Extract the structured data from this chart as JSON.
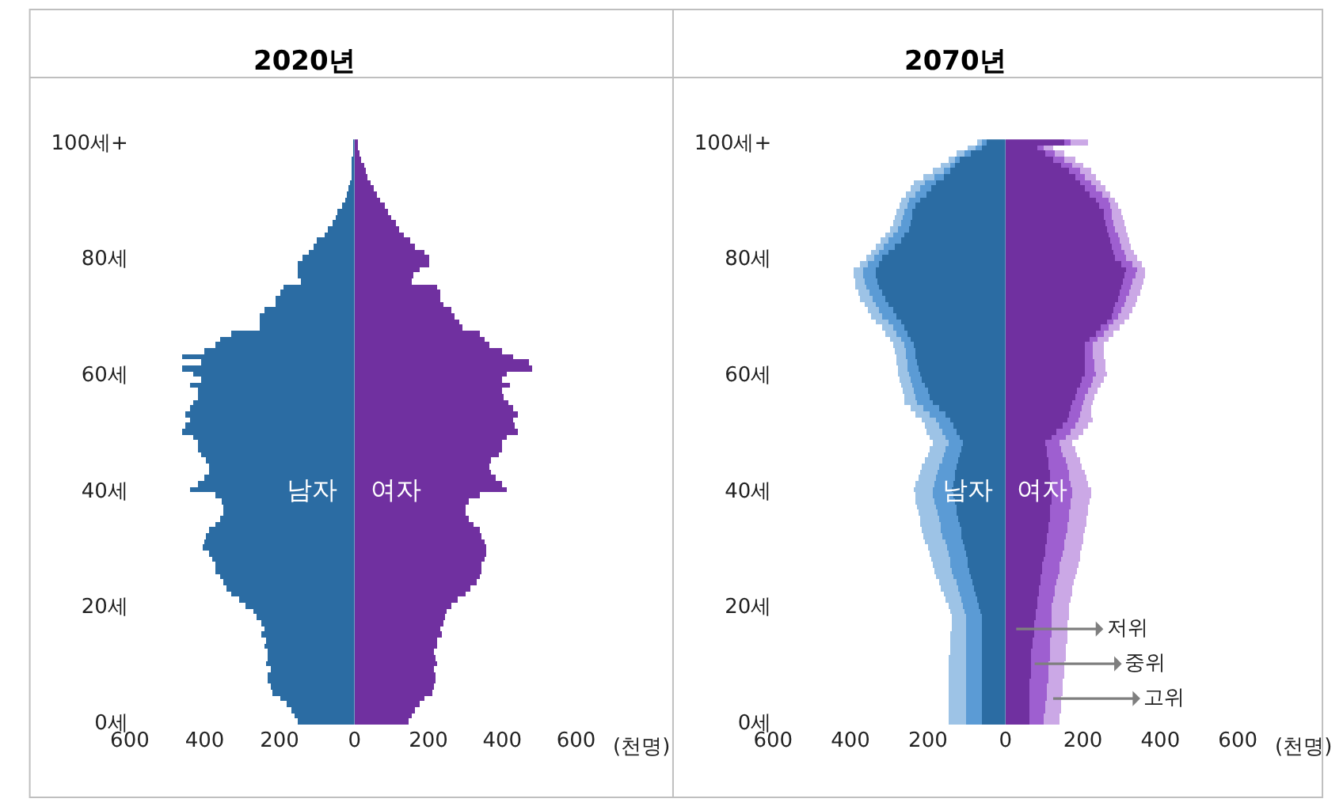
{
  "chart_data": [
    {
      "type": "bar",
      "orientation": "horizontal",
      "title": "2020년",
      "categories": [
        "100세+",
        null,
        null,
        null,
        null,
        null,
        null,
        null,
        null,
        null,
        null,
        null,
        null,
        null,
        null,
        null,
        null,
        null,
        null,
        null,
        "80세",
        null,
        null,
        null,
        null,
        null,
        null,
        null,
        null,
        null,
        null,
        null,
        null,
        null,
        null,
        null,
        null,
        null,
        null,
        null,
        "60세",
        null,
        null,
        null,
        null,
        null,
        null,
        null,
        null,
        null,
        null,
        null,
        null,
        null,
        null,
        null,
        null,
        null,
        null,
        null,
        "40세",
        null,
        null,
        null,
        null,
        null,
        null,
        null,
        null,
        null,
        null,
        null,
        null,
        null,
        null,
        null,
        null,
        null,
        null,
        null,
        "20세",
        null,
        null,
        null,
        null,
        null,
        null,
        null,
        null,
        null,
        null,
        null,
        null,
        null,
        null,
        null,
        null,
        null,
        null,
        null,
        "0세"
      ],
      "xlim": [
        600,
        0
      ],
      "xticks": [
        600,
        400,
        200,
        0
      ],
      "annotations": [
        "남자"
      ],
      "series": [
        {
          "color": "#2b6ca3",
          "values": [
            2,
            2,
            3,
            4,
            6,
            8,
            10,
            12,
            15,
            20,
            25,
            35,
            45,
            50,
            60,
            70,
            80,
            100,
            110,
            120,
            140,
            150,
            150,
            150,
            145,
            190,
            200,
            210,
            210,
            240,
            255,
            255,
            255,
            330,
            360,
            370,
            400,
            460,
            410,
            460,
            430,
            410,
            440,
            420,
            420,
            430,
            440,
            450,
            440,
            450,
            460,
            430,
            420,
            420,
            410,
            395,
            390,
            390,
            400,
            420,
            440,
            370,
            355,
            350,
            350,
            360,
            370,
            390,
            395,
            400,
            405,
            390,
            380,
            370,
            370,
            360,
            350,
            340,
            330,
            310,
            290,
            270,
            260,
            250,
            240,
            250,
            235,
            240,
            230,
            230,
            235,
            225,
            230,
            230,
            225,
            220,
            200,
            180,
            170,
            160,
            150
          ]
        }
      ]
    },
    {
      "type": "bar",
      "orientation": "horizontal",
      "xlabel": "(천명)",
      "categories": [
        null,
        null,
        null,
        null,
        null,
        null,
        null,
        null,
        null,
        null,
        null,
        null,
        null,
        null,
        null,
        null,
        null,
        null,
        null,
        null,
        null,
        null,
        null,
        null,
        null,
        null,
        null,
        null,
        null,
        null,
        null,
        null,
        null,
        null,
        null,
        null,
        null,
        null,
        null,
        null,
        null,
        null,
        null,
        null,
        null,
        null,
        null,
        null,
        null,
        null,
        null,
        null,
        null,
        null,
        null,
        null,
        null,
        null,
        null,
        null,
        null,
        null,
        null,
        null,
        null,
        null,
        null,
        null,
        null,
        null,
        null,
        null,
        null,
        null,
        null,
        null,
        null,
        null,
        null,
        null,
        null,
        null,
        null,
        null,
        null,
        null,
        null,
        null,
        null,
        null,
        null,
        null,
        null,
        null,
        null,
        null,
        null,
        null,
        null,
        null,
        null
      ],
      "xlim": [
        0,
        600
      ],
      "xticks": [
        200,
        400,
        600
      ],
      "annotations": [
        "여자"
      ],
      "series": [
        {
          "color": "#7030a0",
          "values": [
            8,
            10,
            14,
            18,
            24,
            29,
            35,
            42,
            50,
            60,
            70,
            80,
            90,
            100,
            110,
            120,
            135,
            150,
            165,
            190,
            200,
            200,
            175,
            160,
            155,
            225,
            230,
            230,
            240,
            260,
            270,
            285,
            290,
            340,
            350,
            365,
            400,
            430,
            470,
            480,
            410,
            400,
            420,
            400,
            405,
            415,
            430,
            440,
            430,
            435,
            440,
            410,
            400,
            400,
            390,
            370,
            365,
            370,
            380,
            400,
            410,
            340,
            310,
            300,
            300,
            310,
            320,
            340,
            345,
            350,
            355,
            355,
            350,
            345,
            345,
            340,
            330,
            315,
            300,
            280,
            260,
            250,
            245,
            240,
            230,
            235,
            225,
            225,
            215,
            220,
            225,
            215,
            220,
            220,
            215,
            210,
            190,
            175,
            165,
            155,
            145
          ]
        }
      ]
    },
    {
      "type": "bar",
      "orientation": "horizontal",
      "stacked": true,
      "title": "2070년",
      "categories": [
        "100세+",
        null,
        null,
        null,
        null,
        null,
        null,
        null,
        null,
        null,
        null,
        null,
        null,
        null,
        null,
        null,
        null,
        null,
        null,
        null,
        "80세",
        null,
        null,
        null,
        null,
        null,
        null,
        null,
        null,
        null,
        null,
        null,
        null,
        null,
        null,
        null,
        null,
        null,
        null,
        null,
        "60세",
        null,
        null,
        null,
        null,
        null,
        null,
        null,
        null,
        null,
        null,
        null,
        null,
        null,
        null,
        null,
        null,
        null,
        null,
        null,
        "40세",
        null,
        null,
        null,
        null,
        null,
        null,
        null,
        null,
        null,
        null,
        null,
        null,
        null,
        null,
        null,
        null,
        null,
        null,
        null,
        "20세",
        null,
        null,
        null,
        null,
        null,
        null,
        null,
        null,
        null,
        null,
        null,
        null,
        null,
        null,
        null,
        null,
        null,
        null,
        null,
        "0세"
      ],
      "xlim": [
        600,
        0
      ],
      "xticks": [
        600,
        400,
        200,
        0
      ],
      "annotations": [
        "남자"
      ],
      "series": [
        {
          "color": "#2b6ca3",
          "values": [
            48,
            60,
            90,
            116,
            128,
            140,
            160,
            180,
            192,
            205,
            220,
            230,
            240,
            242,
            245,
            248,
            260,
            270,
            285,
            300,
            316,
            326,
            336,
            334,
            330,
            328,
            318,
            310,
            300,
            290,
            280,
            270,
            260,
            252,
            244,
            236,
            232,
            230,
            226,
            224,
            220,
            214,
            208,
            200,
            194,
            188,
            172,
            156,
            140,
            132,
            124,
            116,
            108,
            112,
            116,
            120,
            125,
            128,
            130,
            133,
            136,
            133,
            130,
            127,
            124,
            121,
            118,
            115,
            112,
            108,
            105,
            102,
            99,
            96,
            92,
            88,
            84,
            80,
            76,
            72,
            68,
            64,
            60,
            60,
            60,
            60,
            60,
            60,
            60,
            60,
            60,
            60,
            60,
            60,
            60,
            60,
            60,
            60,
            60,
            60,
            60
          ]
        },
        {
          "color": "#5b9bd5",
          "values": [
            12,
            16,
            14,
            12,
            16,
            20,
            24,
            28,
            28,
            28,
            28,
            24,
            20,
            22,
            24,
            28,
            29,
            30,
            28,
            26,
            24,
            28,
            32,
            32,
            32,
            32,
            33,
            34,
            34,
            35,
            36,
            33,
            30,
            28,
            26,
            24,
            25,
            25,
            26,
            27,
            28,
            30,
            32,
            35,
            37,
            40,
            40,
            40,
            40,
            40,
            40,
            40,
            40,
            41,
            42,
            44,
            45,
            46,
            48,
            50,
            52,
            52,
            52,
            51,
            51,
            50,
            50,
            50,
            49,
            48,
            47,
            46,
            45,
            44,
            44,
            44,
            43,
            43,
            43,
            42,
            42,
            42,
            40,
            40,
            40,
            40,
            40,
            40,
            40,
            40,
            40,
            40,
            40,
            40,
            40,
            40,
            40,
            40,
            40,
            40,
            40
          ]
        },
        {
          "color": "#9dc3e6",
          "values": [
            12,
            20,
            20,
            20,
            24,
            28,
            28,
            28,
            26,
            23,
            20,
            20,
            20,
            20,
            20,
            20,
            20,
            20,
            20,
            20,
            20,
            22,
            24,
            26,
            27,
            28,
            29,
            30,
            30,
            31,
            32,
            30,
            28,
            28,
            28,
            28,
            28,
            28,
            28,
            28,
            28,
            29,
            30,
            30,
            31,
            32,
            33,
            34,
            35,
            36,
            38,
            39,
            40,
            41,
            42,
            44,
            45,
            46,
            46,
            47,
            48,
            48,
            48,
            49,
            49,
            50,
            50,
            50,
            50,
            50,
            49,
            49,
            48,
            48,
            46,
            45,
            44,
            42,
            41,
            40,
            38,
            37,
            36,
            38,
            39,
            40,
            42,
            43,
            44,
            45,
            46,
            48,
            48,
            48,
            48,
            48,
            48,
            48,
            48,
            48,
            48
          ]
        }
      ]
    },
    {
      "type": "bar",
      "orientation": "horizontal",
      "stacked": true,
      "xlabel": "(천명)",
      "categories": [
        null,
        null,
        null,
        null,
        null,
        null,
        null,
        null,
        null,
        null,
        null,
        null,
        null,
        null,
        null,
        null,
        null,
        null,
        null,
        null,
        null,
        null,
        null,
        null,
        null,
        null,
        null,
        null,
        null,
        null,
        null,
        null,
        null,
        null,
        null,
        null,
        null,
        null,
        null,
        null,
        null,
        null,
        null,
        null,
        null,
        null,
        null,
        null,
        null,
        null,
        null,
        null,
        null,
        null,
        null,
        null,
        null,
        null,
        null,
        null,
        null,
        null,
        null,
        null,
        null,
        null,
        null,
        null,
        null,
        null,
        null,
        null,
        null,
        null,
        null,
        null,
        null,
        null,
        null,
        null,
        null,
        null,
        null,
        null,
        null,
        null,
        null,
        null,
        null,
        null,
        null,
        null,
        null,
        null,
        null,
        null,
        null,
        null,
        null,
        null,
        null
      ],
      "xlim": [
        0,
        600
      ],
      "xticks": [
        200,
        400,
        600
      ],
      "annotations": [
        "여자",
        "저위",
        "중위",
        "고위"
      ],
      "series": [
        {
          "color": "#7030a0",
          "values": [
            152,
            80,
            102,
            124,
            144,
            164,
            178,
            192,
            205,
            218,
            232,
            242,
            252,
            255,
            257,
            260,
            264,
            268,
            272,
            278,
            284,
            298,
            312,
            308,
            304,
            300,
            295,
            290,
            284,
            278,
            272,
            260,
            246,
            232,
            218,
            204,
            204,
            204,
            204,
            204,
            204,
            198,
            192,
            185,
            178,
            172,
            168,
            164,
            160,
            146,
            132,
            118,
            104,
            106,
            108,
            110,
            112,
            114,
            116,
            118,
            120,
            119,
            117,
            116,
            114,
            113,
            111,
            110,
            108,
            105,
            103,
            101,
            98,
            96,
            94,
            91,
            89,
            87,
            84,
            82,
            80,
            78,
            77,
            75,
            74,
            72,
            70,
            69,
            67,
            66,
            64,
            64,
            64,
            63,
            63,
            62,
            62,
            61,
            61,
            60,
            60
          ]
        },
        {
          "color": "#9e5fd0",
          "values": [
            16,
            20,
            24,
            28,
            28,
            28,
            28,
            28,
            29,
            30,
            32,
            26,
            20,
            21,
            22,
            24,
            25,
            26,
            28,
            28,
            28,
            28,
            28,
            26,
            25,
            24,
            23,
            22,
            22,
            21,
            20,
            20,
            20,
            20,
            20,
            20,
            21,
            22,
            24,
            26,
            28,
            28,
            28,
            28,
            28,
            28,
            28,
            28,
            30,
            32,
            34,
            36,
            36,
            38,
            41,
            44,
            46,
            48,
            49,
            50,
            52,
            52,
            52,
            51,
            51,
            51,
            50,
            50,
            49,
            48,
            47,
            46,
            45,
            44,
            43,
            42,
            42,
            41,
            41,
            40,
            40,
            41,
            42,
            43,
            44,
            45,
            46,
            47,
            47,
            48,
            48,
            48,
            47,
            46,
            45,
            44,
            43,
            42,
            41,
            40,
            40
          ]
        },
        {
          "color": "#cba8e6",
          "values": [
            44,
            24,
            26,
            28,
            28,
            28,
            26,
            24,
            23,
            22,
            20,
            24,
            28,
            28,
            28,
            28,
            27,
            26,
            24,
            26,
            28,
            24,
            20,
            24,
            26,
            28,
            28,
            28,
            28,
            28,
            28,
            28,
            28,
            28,
            28,
            28,
            28,
            28,
            28,
            28,
            28,
            27,
            26,
            26,
            25,
            24,
            26,
            28,
            35,
            34,
            34,
            33,
            32,
            34,
            36,
            38,
            40,
            42,
            44,
            46,
            48,
            48,
            48,
            47,
            47,
            46,
            46,
            45,
            45,
            46,
            46,
            47,
            48,
            48,
            47,
            46,
            46,
            45,
            45,
            44,
            44,
            44,
            44,
            43,
            43,
            42,
            42,
            41,
            41,
            40,
            40,
            40,
            40,
            40,
            40,
            40,
            40,
            40,
            40,
            40,
            40
          ]
        }
      ]
    }
  ]
}
